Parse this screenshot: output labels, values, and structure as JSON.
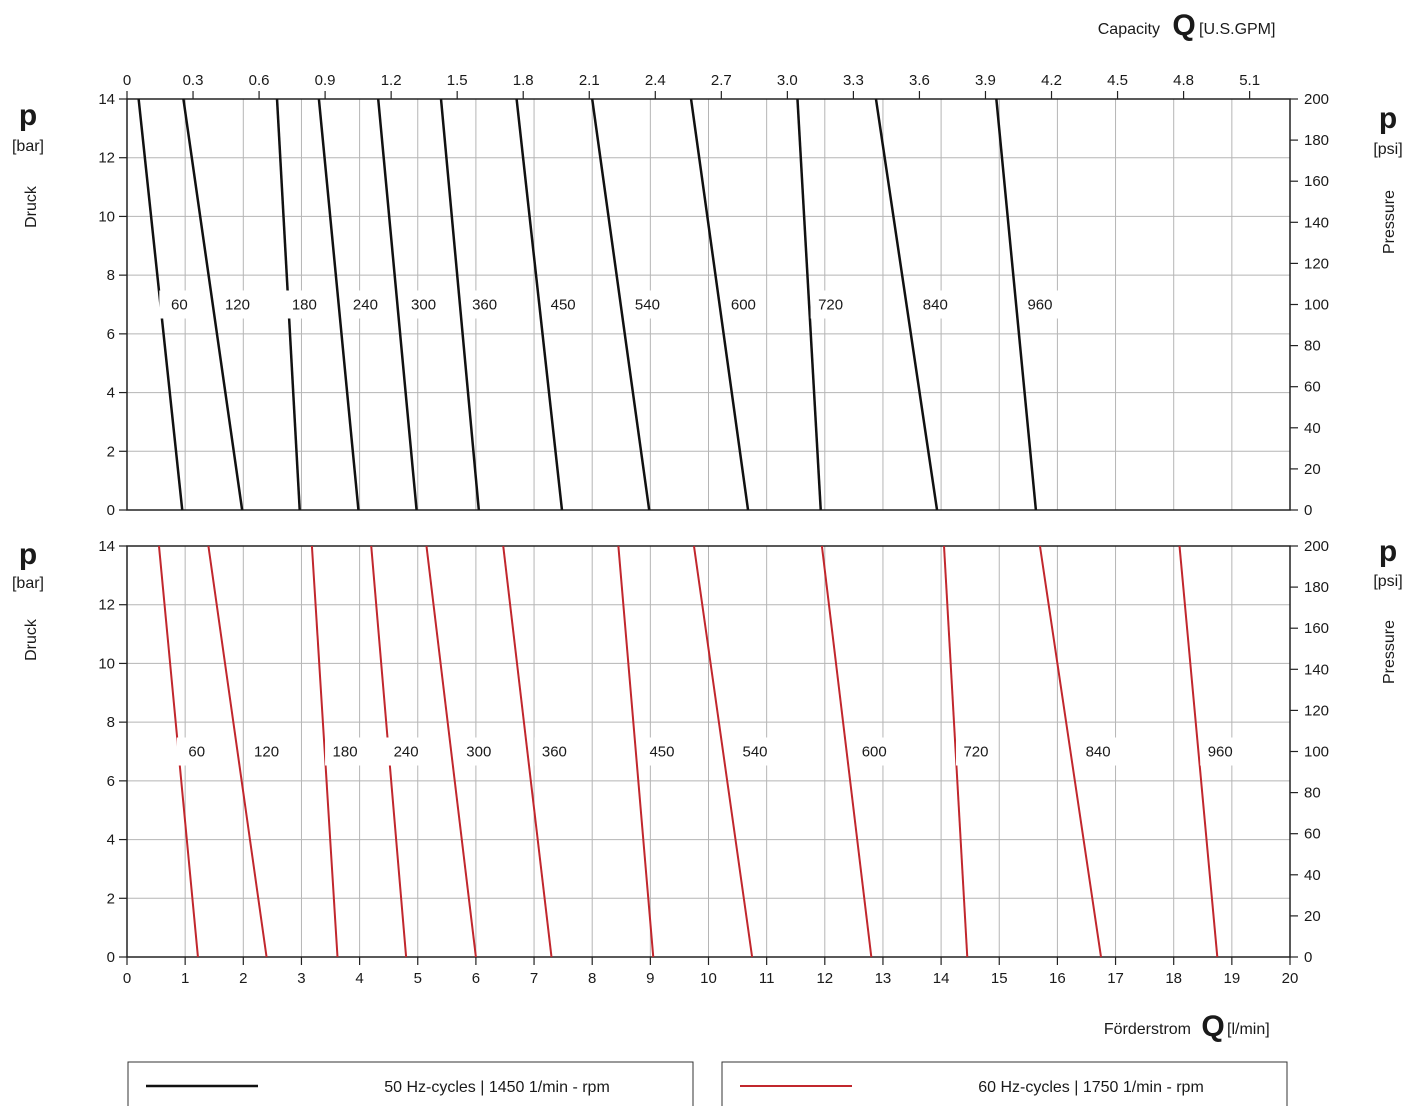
{
  "top_axis": {
    "title": "Capacity",
    "symbol": "Q",
    "unit": "[U.S.GPM]",
    "ticks": [
      "0",
      "0.3",
      "0.6",
      "0.9",
      "1.2",
      "1.5",
      "1.8",
      "2.1",
      "2.4",
      "2.7",
      "3.0",
      "3.3",
      "3.6",
      "3.9",
      "4.2",
      "4.5",
      "4.8",
      "5.1"
    ]
  },
  "bottom_axis": {
    "title": "Förderstrom",
    "symbol": "Q",
    "unit": "[l/min]",
    "ticks": [
      "0",
      "1",
      "2",
      "3",
      "4",
      "5",
      "6",
      "7",
      "8",
      "9",
      "10",
      "11",
      "12",
      "13",
      "14",
      "15",
      "16",
      "17",
      "18",
      "19",
      "20"
    ]
  },
  "left_axis": {
    "symbol": "p",
    "unit": "[bar]",
    "title": "Druck",
    "ticks": [
      "0",
      "2",
      "4",
      "6",
      "8",
      "10",
      "12",
      "14"
    ]
  },
  "right_axis": {
    "symbol": "p",
    "unit": "[psi]",
    "title": "Pressure",
    "ticks": [
      "0",
      "20",
      "40",
      "60",
      "80",
      "100",
      "120",
      "140",
      "160",
      "180",
      "200"
    ]
  },
  "legend": {
    "black_label": "50 Hz-cycles | 1450 1/min - rpm",
    "red_label": "60 Hz-cycles | 1750 1/min - rpm"
  },
  "colors": {
    "series_50hz": "#111111",
    "series_60hz": "#c1272d",
    "grid": "#b5b5b5"
  },
  "chart_data": [
    {
      "type": "line",
      "name": "50 Hz-cycles | 1450 1/min - rpm",
      "x_unit": "l/min",
      "y_unit": "bar",
      "xlim": [
        0,
        20
      ],
      "ylim": [
        0,
        14
      ],
      "series": [
        {
          "name": "60",
          "label_y": 7,
          "label_x": 0.9,
          "x": [
            0.95,
            0.2
          ],
          "y": [
            0,
            14
          ]
        },
        {
          "name": "120",
          "label_y": 7,
          "label_x": 1.9,
          "x": [
            1.98,
            0.97
          ],
          "y": [
            0,
            14
          ]
        },
        {
          "name": "180",
          "label_y": 7,
          "label_x": 3.05,
          "x": [
            2.97,
            2.58
          ],
          "y": [
            0,
            14
          ]
        },
        {
          "name": "240",
          "label_y": 7,
          "label_x": 4.1,
          "x": [
            3.98,
            3.3
          ],
          "y": [
            0,
            14
          ]
        },
        {
          "name": "300",
          "label_y": 7,
          "label_x": 5.1,
          "x": [
            4.98,
            4.32
          ],
          "y": [
            0,
            14
          ]
        },
        {
          "name": "360",
          "label_y": 7,
          "label_x": 6.15,
          "x": [
            6.05,
            5.4
          ],
          "y": [
            0,
            14
          ]
        },
        {
          "name": "450",
          "label_y": 7,
          "label_x": 7.5,
          "x": [
            7.48,
            6.7
          ],
          "y": [
            0,
            14
          ]
        },
        {
          "name": "540",
          "label_y": 7,
          "label_x": 8.95,
          "x": [
            8.98,
            8.0
          ],
          "y": [
            0,
            14
          ]
        },
        {
          "name": "600",
          "label_y": 7,
          "label_x": 10.6,
          "x": [
            10.68,
            9.7
          ],
          "y": [
            0,
            14
          ]
        },
        {
          "name": "720",
          "label_y": 7,
          "label_x": 12.1,
          "x": [
            11.93,
            11.53
          ],
          "y": [
            0,
            14
          ]
        },
        {
          "name": "840",
          "label_y": 7,
          "label_x": 13.9,
          "x": [
            13.93,
            12.88
          ],
          "y": [
            0,
            14
          ]
        },
        {
          "name": "960",
          "label_y": 7,
          "label_x": 15.7,
          "x": [
            15.63,
            14.95
          ],
          "y": [
            0,
            14
          ]
        }
      ]
    },
    {
      "type": "line",
      "name": "60 Hz-cycles | 1750 1/min - rpm",
      "x_unit": "l/min",
      "y_unit": "bar",
      "xlim": [
        0,
        20
      ],
      "ylim": [
        0,
        14
      ],
      "series": [
        {
          "name": "60",
          "label_y": 7,
          "label_x": 1.2,
          "x": [
            1.22,
            0.55
          ],
          "y": [
            0,
            14
          ]
        },
        {
          "name": "120",
          "label_y": 7,
          "label_x": 2.4,
          "x": [
            2.4,
            1.4
          ],
          "y": [
            0,
            14
          ]
        },
        {
          "name": "180",
          "label_y": 7,
          "label_x": 3.75,
          "x": [
            3.62,
            3.18
          ],
          "y": [
            0,
            14
          ]
        },
        {
          "name": "240",
          "label_y": 7,
          "label_x": 4.8,
          "x": [
            4.8,
            4.2
          ],
          "y": [
            0,
            14
          ]
        },
        {
          "name": "300",
          "label_y": 7,
          "label_x": 6.05,
          "x": [
            6.0,
            5.15
          ],
          "y": [
            0,
            14
          ]
        },
        {
          "name": "360",
          "label_y": 7,
          "label_x": 7.35,
          "x": [
            7.3,
            6.47
          ],
          "y": [
            0,
            14
          ]
        },
        {
          "name": "450",
          "label_y": 7,
          "label_x": 9.2,
          "x": [
            9.05,
            8.45
          ],
          "y": [
            0,
            14
          ]
        },
        {
          "name": "540",
          "label_y": 7,
          "label_x": 10.8,
          "x": [
            10.75,
            9.75
          ],
          "y": [
            0,
            14
          ]
        },
        {
          "name": "600",
          "label_y": 7,
          "label_x": 12.85,
          "x": [
            12.8,
            11.95
          ],
          "y": [
            0,
            14
          ]
        },
        {
          "name": "720",
          "label_y": 7,
          "label_x": 14.6,
          "x": [
            14.45,
            14.05
          ],
          "y": [
            0,
            14
          ]
        },
        {
          "name": "840",
          "label_y": 7,
          "label_x": 16.7,
          "x": [
            16.75,
            15.7
          ],
          "y": [
            0,
            14
          ]
        },
        {
          "name": "960",
          "label_y": 7,
          "label_x": 18.8,
          "x": [
            18.75,
            18.1
          ],
          "y": [
            0,
            14
          ]
        }
      ]
    }
  ]
}
